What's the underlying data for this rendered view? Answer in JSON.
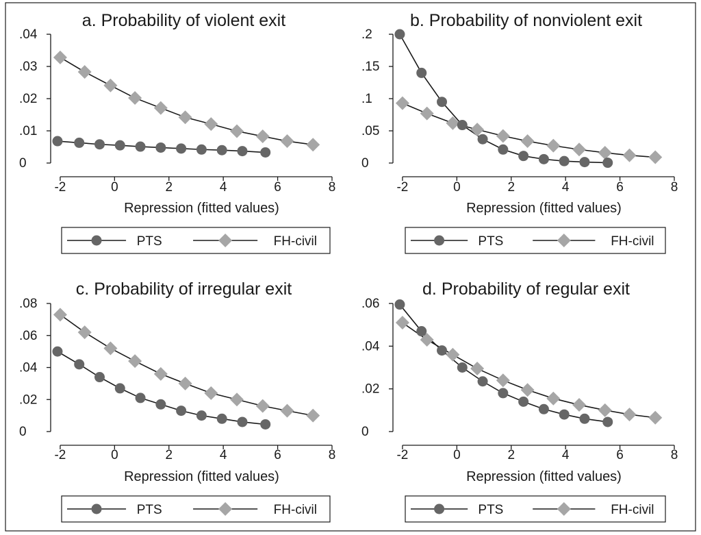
{
  "chart_data": [
    {
      "type": "line",
      "title": "a. Probability of violent exit",
      "xlabel": "Repression (fitted values)",
      "ylabel": "",
      "xlim": [
        -2.2,
        8
      ],
      "ylim": [
        0,
        0.04
      ],
      "xticks": [
        -2,
        0,
        2,
        4,
        6,
        8
      ],
      "xtick_labels": [
        "-2",
        "0",
        "2",
        "4",
        "6",
        "8"
      ],
      "yticks": [
        0,
        0.01,
        0.02,
        0.03,
        0.04
      ],
      "ytick_labels": [
        "0",
        ".01",
        ".02",
        ".03",
        ".04"
      ],
      "legend": "bottom",
      "series": [
        {
          "name": "PTS",
          "marker": "circle",
          "color": "#666666",
          "x": [
            -2.1,
            -1.3,
            -0.55,
            0.2,
            0.95,
            1.7,
            2.45,
            3.2,
            3.95,
            4.7,
            5.55
          ],
          "y": [
            0.0068,
            0.0063,
            0.0058,
            0.0055,
            0.0051,
            0.0048,
            0.0045,
            0.0042,
            0.004,
            0.0037,
            0.0033
          ]
        },
        {
          "name": "FH-civil",
          "marker": "diamond",
          "color": "#a6a6a6",
          "x": [
            -2.0,
            -1.1,
            -0.15,
            0.75,
            1.7,
            2.6,
            3.55,
            4.5,
            5.45,
            6.35,
            7.3
          ],
          "y": [
            0.0328,
            0.0283,
            0.0241,
            0.0202,
            0.0171,
            0.0142,
            0.0121,
            0.0099,
            0.0083,
            0.0068,
            0.0057
          ]
        }
      ]
    },
    {
      "type": "line",
      "title": "b. Probability of nonviolent exit",
      "xlabel": "Repression (fitted values)",
      "ylabel": "",
      "xlim": [
        -2.2,
        8
      ],
      "ylim": [
        0,
        0.2
      ],
      "xticks": [
        -2,
        0,
        2,
        4,
        6,
        8
      ],
      "xtick_labels": [
        "-2",
        "0",
        "2",
        "4",
        "6",
        "8"
      ],
      "yticks": [
        0,
        0.05,
        0.1,
        0.15,
        0.2
      ],
      "ytick_labels": [
        "0",
        ".05",
        ".1",
        ".15",
        ".2"
      ],
      "legend": "bottom",
      "series": [
        {
          "name": "PTS",
          "marker": "circle",
          "color": "#666666",
          "x": [
            -2.1,
            -1.3,
            -0.55,
            0.2,
            0.95,
            1.7,
            2.45,
            3.2,
            3.95,
            4.7,
            5.55
          ],
          "y": [
            0.2,
            0.14,
            0.095,
            0.059,
            0.037,
            0.021,
            0.011,
            0.006,
            0.003,
            0.0015,
            0.0005
          ]
        },
        {
          "name": "FH-civil",
          "marker": "diamond",
          "color": "#a6a6a6",
          "x": [
            -2.0,
            -1.1,
            -0.15,
            0.75,
            1.7,
            2.6,
            3.55,
            4.5,
            5.45,
            6.35,
            7.3
          ],
          "y": [
            0.093,
            0.077,
            0.062,
            0.052,
            0.042,
            0.034,
            0.027,
            0.021,
            0.016,
            0.012,
            0.009
          ]
        }
      ]
    },
    {
      "type": "line",
      "title": "c. Probability of irregular exit",
      "xlabel": "Repression (fitted values)",
      "ylabel": "",
      "xlim": [
        -2.2,
        8
      ],
      "ylim": [
        0,
        0.08
      ],
      "xticks": [
        -2,
        0,
        2,
        4,
        6,
        8
      ],
      "xtick_labels": [
        "-2",
        "0",
        "2",
        "4",
        "6",
        "8"
      ],
      "yticks": [
        0,
        0.02,
        0.04,
        0.06,
        0.08
      ],
      "ytick_labels": [
        "0",
        ".02",
        ".04",
        ".06",
        ".08"
      ],
      "legend": "bottom",
      "series": [
        {
          "name": "PTS",
          "marker": "circle",
          "color": "#666666",
          "x": [
            -2.1,
            -1.3,
            -0.55,
            0.2,
            0.95,
            1.7,
            2.45,
            3.2,
            3.95,
            4.7,
            5.55
          ],
          "y": [
            0.05,
            0.042,
            0.034,
            0.027,
            0.021,
            0.017,
            0.013,
            0.01,
            0.008,
            0.006,
            0.0045
          ]
        },
        {
          "name": "FH-civil",
          "marker": "diamond",
          "color": "#a6a6a6",
          "x": [
            -2.0,
            -1.1,
            -0.15,
            0.75,
            1.7,
            2.6,
            3.55,
            4.5,
            5.45,
            6.35,
            7.3
          ],
          "y": [
            0.073,
            0.062,
            0.052,
            0.044,
            0.036,
            0.03,
            0.024,
            0.02,
            0.016,
            0.013,
            0.01
          ]
        }
      ]
    },
    {
      "type": "line",
      "title": "d. Probability of regular exit",
      "xlabel": "Repression (fitted values)",
      "ylabel": "",
      "xlim": [
        -2.2,
        8
      ],
      "ylim": [
        0,
        0.06
      ],
      "xticks": [
        -2,
        0,
        2,
        4,
        6,
        8
      ],
      "xtick_labels": [
        "-2",
        "0",
        "2",
        "4",
        "6",
        "8"
      ],
      "yticks": [
        0,
        0.02,
        0.04,
        0.06
      ],
      "ytick_labels": [
        "0",
        ".02",
        ".04",
        ".06"
      ],
      "legend": "bottom",
      "series": [
        {
          "name": "PTS",
          "marker": "circle",
          "color": "#666666",
          "x": [
            -2.1,
            -1.3,
            -0.55,
            0.2,
            0.95,
            1.7,
            2.45,
            3.2,
            3.95,
            4.7,
            5.55
          ],
          "y": [
            0.0595,
            0.047,
            0.038,
            0.03,
            0.0235,
            0.018,
            0.014,
            0.0105,
            0.008,
            0.006,
            0.0045
          ]
        },
        {
          "name": "FH-civil",
          "marker": "diamond",
          "color": "#a6a6a6",
          "x": [
            -2.0,
            -1.1,
            -0.15,
            0.75,
            1.7,
            2.6,
            3.55,
            4.5,
            5.45,
            6.35,
            7.3
          ],
          "y": [
            0.051,
            0.043,
            0.036,
            0.0295,
            0.024,
            0.0195,
            0.0155,
            0.0125,
            0.01,
            0.008,
            0.0065
          ]
        }
      ]
    }
  ]
}
